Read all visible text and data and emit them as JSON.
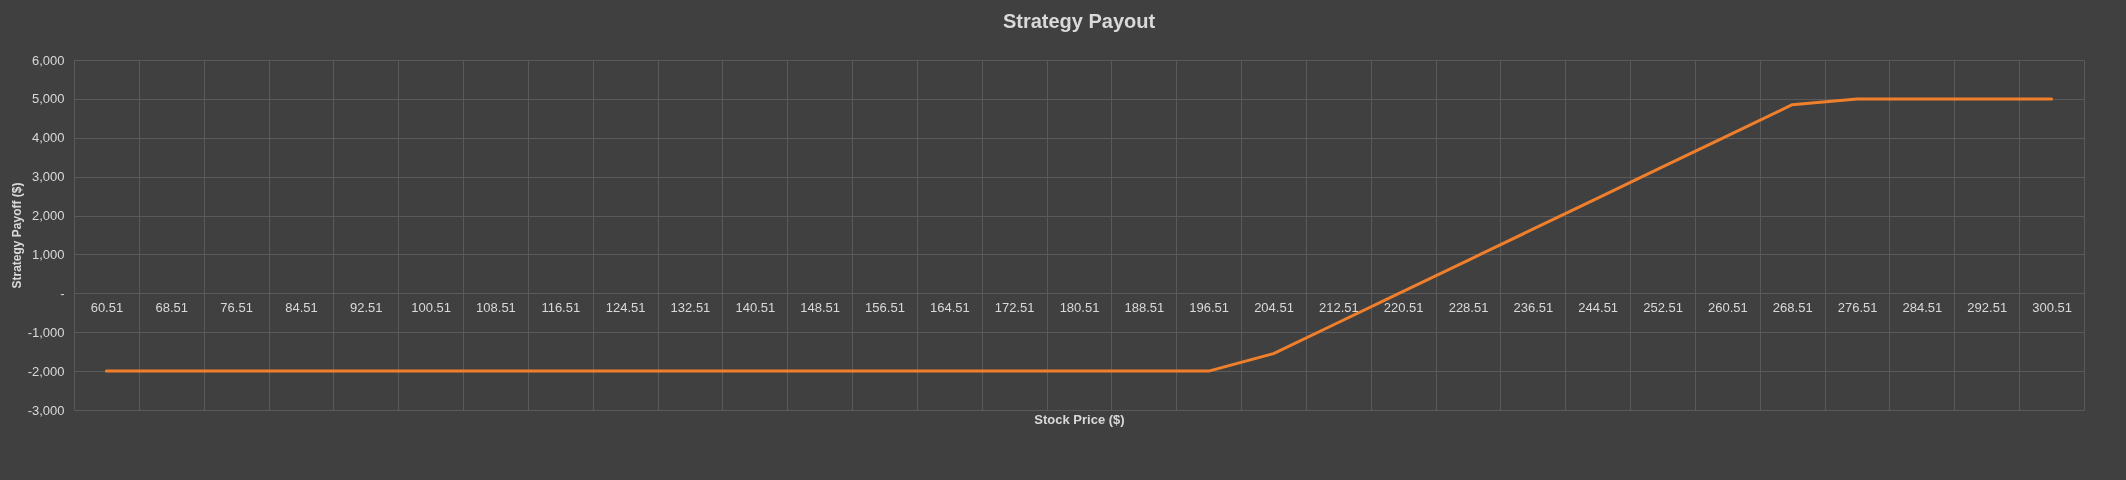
{
  "chart_data": {
    "type": "line",
    "title": "Strategy Payout",
    "xlabel": "Stock Price ($)",
    "ylabel": "Strategy Payoff ($)",
    "categories": [
      "60.51",
      "68.51",
      "76.51",
      "84.51",
      "92.51",
      "100.51",
      "108.51",
      "116.51",
      "124.51",
      "132.51",
      "140.51",
      "148.51",
      "156.51",
      "164.51",
      "172.51",
      "180.51",
      "188.51",
      "196.51",
      "204.51",
      "212.51",
      "220.51",
      "228.51",
      "236.51",
      "244.51",
      "252.51",
      "260.51",
      "268.51",
      "276.51",
      "284.51",
      "292.51",
      "300.51"
    ],
    "series": [
      {
        "color": "#f07f2c",
        "values": [
          -2000,
          -2000,
          -2000,
          -2000,
          -2000,
          -2000,
          -2000,
          -2000,
          -2000,
          -2000,
          -2000,
          -2000,
          -2000,
          -2000,
          -2000,
          -2000,
          -2000,
          -2000,
          -1550,
          -750,
          50,
          850,
          1650,
          2450,
          3250,
          4050,
          4850,
          5000,
          5000,
          5000,
          5000
        ]
      }
    ],
    "ylim": [
      -3000,
      6000
    ],
    "yticks": [
      {
        "value": -3000,
        "label": "-3,000"
      },
      {
        "value": -2000,
        "label": "-2,000"
      },
      {
        "value": -1000,
        "label": "-1,000"
      },
      {
        "value": 0,
        "label": "-"
      },
      {
        "value": 1000,
        "label": "1,000"
      },
      {
        "value": 2000,
        "label": "2,000"
      },
      {
        "value": 3000,
        "label": "3,000"
      },
      {
        "value": 4000,
        "label": "4,000"
      },
      {
        "value": 5000,
        "label": "5,000"
      },
      {
        "value": 6000,
        "label": "6,000"
      }
    ],
    "grid": true
  }
}
